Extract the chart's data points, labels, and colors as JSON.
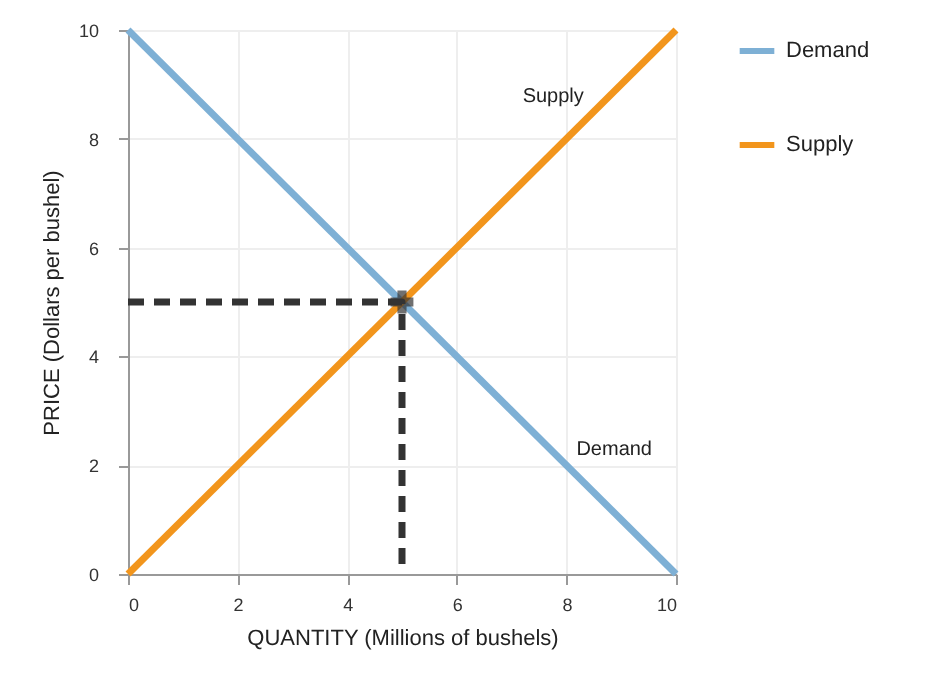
{
  "chart_data": {
    "type": "line",
    "xlabel": "QUANTITY (Millions of bushels)",
    "ylabel": "PRICE (Dollars per bushel)",
    "xlim": [
      0,
      10
    ],
    "ylim": [
      0,
      10
    ],
    "xticks": [
      0,
      2,
      4,
      6,
      8,
      10
    ],
    "yticks": [
      0,
      2,
      4,
      6,
      8,
      10
    ],
    "grid": true,
    "legend": "right",
    "series": [
      {
        "name": "Demand",
        "color": "#7eb0d5",
        "x": [
          0,
          10
        ],
        "values": [
          10,
          0
        ]
      },
      {
        "name": "Supply",
        "color": "#f2951c",
        "x": [
          0,
          10
        ],
        "values": [
          0,
          10
        ]
      },
      {
        "type": "line",
        "color": "#333333",
        "line_style": "dashed",
        "x": [
          0,
          5,
          5
        ],
        "values": [
          5,
          5,
          0
        ]
      },
      {
        "type": "scatter",
        "color": "#333333",
        "marker": "cross",
        "x": [
          5
        ],
        "values": [
          5
        ]
      }
    ],
    "annotations": [
      {
        "text": "Supply",
        "x": 8.5,
        "y": 8.5
      },
      {
        "text": "Demand",
        "x": 8,
        "y": 2
      }
    ]
  }
}
